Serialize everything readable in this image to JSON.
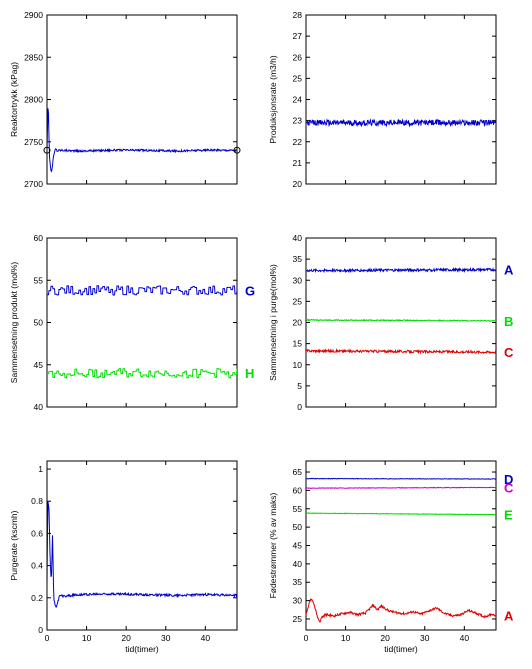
{
  "chart_data": [
    {
      "type": "line",
      "ylabel": "Reaktortrykk (kPag)",
      "xlabel": "",
      "xlim": [
        0,
        48
      ],
      "ylim": [
        2700,
        2900
      ],
      "yticks": [
        2700,
        2750,
        2800,
        2850,
        2900
      ],
      "xticks": [
        0,
        10,
        20,
        30,
        40
      ],
      "show_xtick_labels": false,
      "series": [
        {
          "color": "#0000cc",
          "points": [
            [
              0,
              2740
            ],
            [
              0.3,
              2800
            ],
            [
              0.6,
              2735
            ],
            [
              0.9,
              2718
            ],
            [
              1.2,
              2714
            ],
            [
              1.5,
              2728
            ],
            [
              1.8,
              2736
            ],
            [
              2.2,
              2742
            ],
            [
              2.6,
              2739
            ],
            [
              3,
              2740
            ],
            [
              4,
              2740
            ],
            [
              8,
              2739
            ],
            [
              16,
              2740
            ],
            [
              24,
              2740
            ],
            [
              32,
              2739
            ],
            [
              40,
              2740
            ],
            [
              48,
              2740
            ]
          ],
          "noise": 1.2
        }
      ],
      "markers": [
        {
          "x": 0,
          "y": 2740,
          "symbol": "circle"
        },
        {
          "x": 48,
          "y": 2740,
          "symbol": "circle"
        }
      ]
    },
    {
      "type": "line",
      "ylabel": "Produksjonsrate (m3/h)",
      "xlabel": "",
      "xlim": [
        0,
        48
      ],
      "ylim": [
        20,
        28
      ],
      "yticks": [
        20,
        21,
        22,
        23,
        24,
        25,
        26,
        27,
        28
      ],
      "xticks": [
        0,
        10,
        20,
        30,
        40
      ],
      "show_xtick_labels": false,
      "series": [
        {
          "color": "#0000cc",
          "points": [
            [
              0,
              22.9
            ],
            [
              48,
              22.9
            ]
          ],
          "noise": 0.14
        }
      ]
    },
    {
      "type": "line",
      "ylabel": "Sammensetning produkt (mol%)",
      "xlabel": "",
      "xlim": [
        0,
        48
      ],
      "ylim": [
        40,
        60
      ],
      "yticks": [
        40,
        45,
        50,
        55,
        60
      ],
      "xticks": [
        0,
        10,
        20,
        30,
        40
      ],
      "show_xtick_labels": false,
      "series": [
        {
          "name": "G",
          "color": "#0000cc",
          "points": [
            [
              0,
              53.8
            ],
            [
              48,
              53.8
            ]
          ],
          "noise": 0.55,
          "step": true
        },
        {
          "name": "H",
          "color": "#00dd00",
          "points": [
            [
              0,
              44
            ],
            [
              48,
              44
            ]
          ],
          "noise": 0.55,
          "step": true
        }
      ]
    },
    {
      "type": "line",
      "ylabel": "Sammensetning i purge(mol%)",
      "xlabel": "",
      "xlim": [
        0,
        48
      ],
      "ylim": [
        0,
        40
      ],
      "yticks": [
        0,
        5,
        10,
        15,
        20,
        25,
        30,
        35,
        40
      ],
      "xticks": [
        0,
        10,
        20,
        30,
        40
      ],
      "show_xtick_labels": false,
      "series": [
        {
          "name": "A",
          "color": "#0000cc",
          "points": [
            [
              0,
              32.3
            ],
            [
              48,
              32.5
            ]
          ],
          "noise": 0.3
        },
        {
          "name": "B",
          "color": "#00dd00",
          "points": [
            [
              0,
              20.6
            ],
            [
              48,
              20.4
            ]
          ],
          "noise": 0.12
        },
        {
          "name": "C",
          "color": "#dd0000",
          "points": [
            [
              0,
              13.3
            ],
            [
              48,
              13
            ]
          ],
          "noise": 0.28
        }
      ]
    },
    {
      "type": "line",
      "ylabel": "Purgerate (kscmh)",
      "xlabel": "tid(timer)",
      "xlim": [
        0,
        48
      ],
      "ylim": [
        0,
        1.05
      ],
      "yticks": [
        0,
        0.2,
        0.4,
        0.6,
        0.8,
        1
      ],
      "xticks": [
        0,
        10,
        20,
        30,
        40
      ],
      "show_xtick_labels": true,
      "series": [
        {
          "color": "#0000cc",
          "points": [
            [
              0,
              0.25
            ],
            [
              0.2,
              0.8
            ],
            [
              0.5,
              0.76
            ],
            [
              0.8,
              0.42
            ],
            [
              1.1,
              0.3
            ],
            [
              1.4,
              0.6
            ],
            [
              1.7,
              0.2
            ],
            [
              2,
              0.16
            ],
            [
              2.4,
              0.14
            ],
            [
              2.8,
              0.18
            ],
            [
              3.2,
              0.22
            ],
            [
              4,
              0.21
            ],
            [
              8,
              0.22
            ],
            [
              16,
              0.225
            ],
            [
              24,
              0.22
            ],
            [
              32,
              0.215
            ],
            [
              40,
              0.22
            ],
            [
              48,
              0.215
            ]
          ],
          "noise": 0.007
        }
      ]
    },
    {
      "type": "line",
      "ylabel": "Fødestrømmer (% av maks)",
      "xlabel": "tid(timer)",
      "xlim": [
        0,
        48
      ],
      "ylim": [
        22,
        68
      ],
      "yticks": [
        25,
        30,
        35,
        40,
        45,
        50,
        55,
        60,
        65
      ],
      "xticks": [
        0,
        10,
        20,
        30,
        40
      ],
      "show_xtick_labels": true,
      "series": [
        {
          "name": "D",
          "color": "#0000cc",
          "points": [
            [
              0,
              63.2
            ],
            [
              48,
              63.1
            ]
          ],
          "noise": 0.07
        },
        {
          "name": "C",
          "color": "#cc00cc",
          "points": [
            [
              0,
              60.6
            ],
            [
              48,
              60.8
            ]
          ],
          "noise": 0.08
        },
        {
          "name": "E",
          "color": "#00dd00",
          "points": [
            [
              0,
              53.8
            ],
            [
              48,
              53.4
            ]
          ],
          "noise": 0.08
        },
        {
          "name": "A",
          "color": "#dd0000",
          "points": [
            [
              0,
              26
            ],
            [
              0.6,
              28.5
            ],
            [
              1.2,
              30.5
            ],
            [
              1.8,
              30
            ],
            [
              2.4,
              27.5
            ],
            [
              3,
              25.2
            ],
            [
              3.5,
              24.2
            ],
            [
              4,
              25.5
            ],
            [
              5,
              26.2
            ],
            [
              7,
              25.8
            ],
            [
              9,
              26.4
            ],
            [
              11,
              26.8
            ],
            [
              13,
              26.2
            ],
            [
              15,
              26.6
            ],
            [
              17,
              28.8
            ],
            [
              18,
              27.5
            ],
            [
              19,
              28.5
            ],
            [
              21,
              27.2
            ],
            [
              23,
              26.7
            ],
            [
              25,
              26.4
            ],
            [
              27,
              27
            ],
            [
              29,
              26.3
            ],
            [
              31,
              27.2
            ],
            [
              33,
              28
            ],
            [
              35,
              26.5
            ],
            [
              37,
              25.9
            ],
            [
              39,
              26.1
            ],
            [
              41,
              27.3
            ],
            [
              43,
              26.6
            ],
            [
              45,
              25.6
            ],
            [
              47,
              26.3
            ],
            [
              48,
              26
            ]
          ],
          "noise": 0.3
        }
      ]
    }
  ]
}
